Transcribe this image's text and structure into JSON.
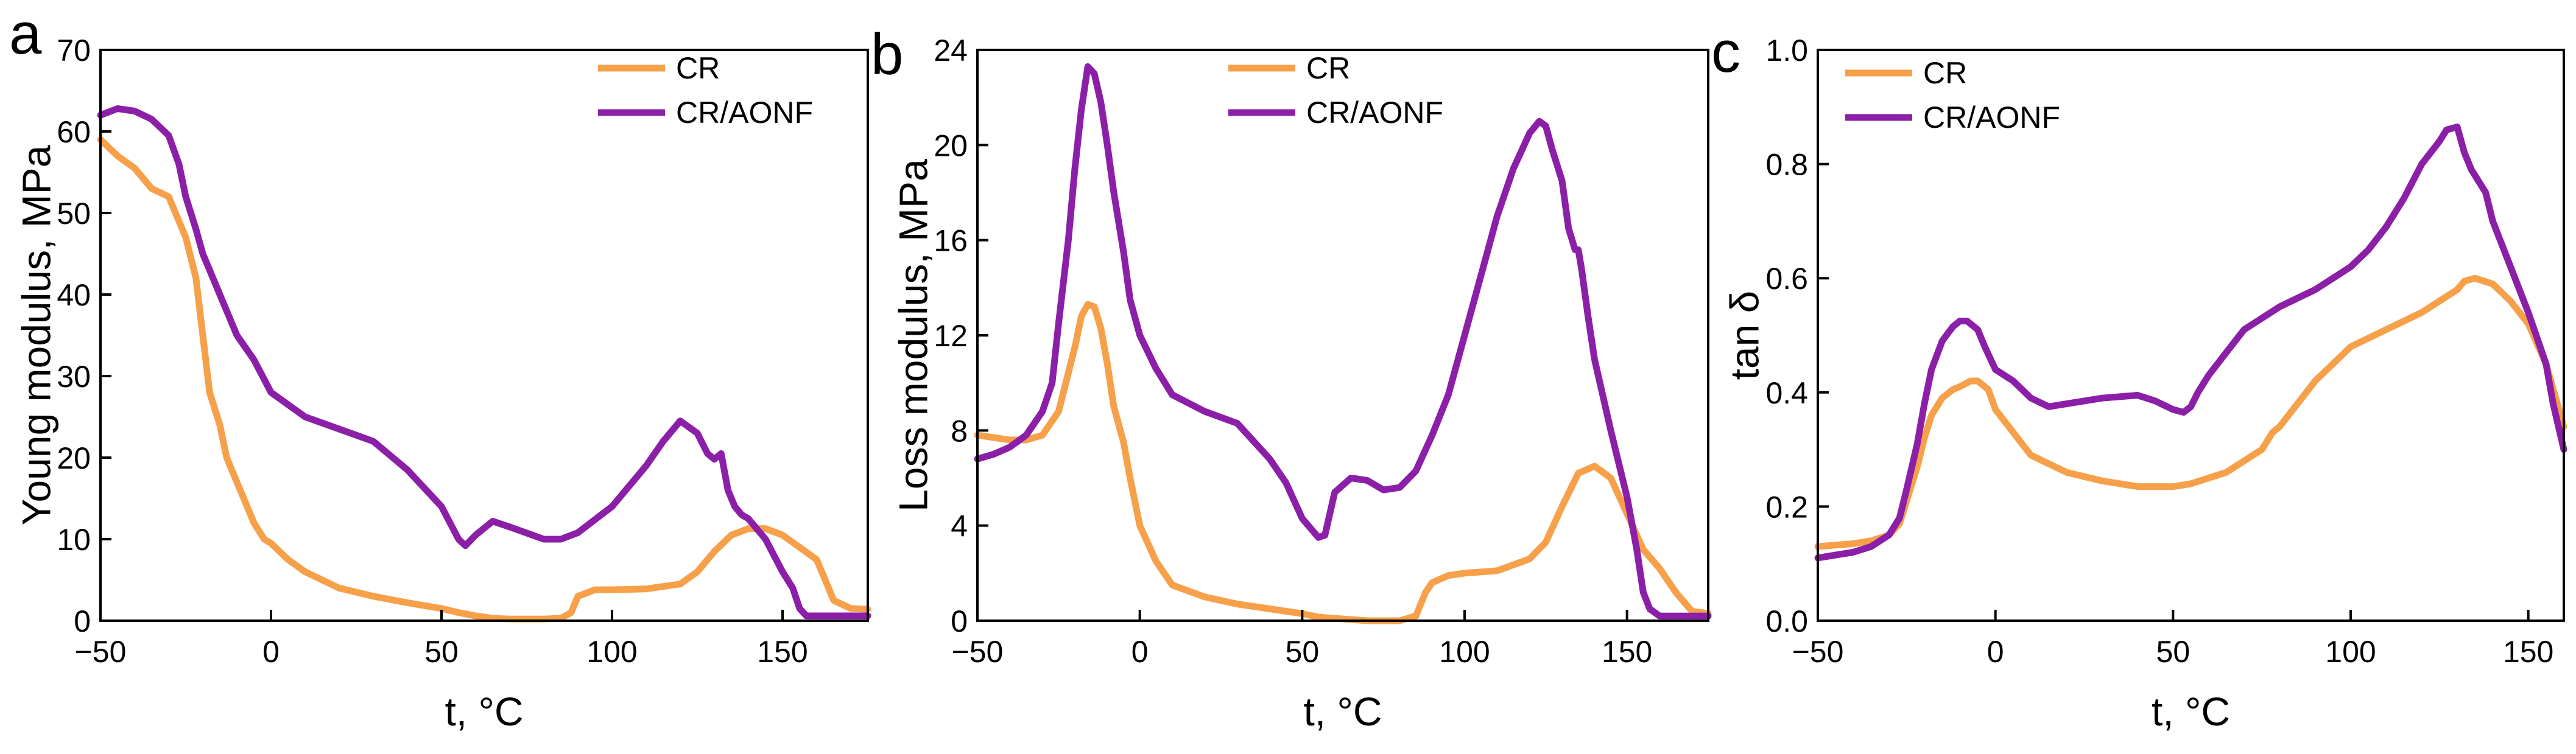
{
  "chart_data": [
    {
      "type": "line",
      "panel_label": "a",
      "title": "",
      "xlabel": "t, °C",
      "ylabel": "Young modulus, MPa",
      "xlim": [
        -50,
        175
      ],
      "ylim": [
        0,
        70
      ],
      "xticks": [
        -50,
        0,
        50,
        100,
        150
      ],
      "yticks": [
        0,
        10,
        20,
        30,
        40,
        50,
        60,
        70
      ],
      "tick_labels_x": [
        "−50",
        "0",
        "50",
        "100",
        "150"
      ],
      "tick_labels_y": [
        "0",
        "10",
        "20",
        "30",
        "40",
        "50",
        "60",
        "70"
      ],
      "legend_position": "top-right",
      "series": [
        {
          "name": "CR",
          "color": "#F7A04A",
          "x": [
            -50,
            -45,
            -40,
            -35,
            -30,
            -25,
            -22,
            -20,
            -18,
            -15,
            -13,
            -10,
            -7,
            -5,
            -2,
            0,
            5,
            10,
            20,
            30,
            40,
            50,
            55,
            60,
            65,
            70,
            80,
            85,
            88,
            90,
            95,
            100,
            110,
            120,
            125,
            130,
            135,
            140,
            145,
            150,
            155,
            160,
            165,
            170,
            175
          ],
          "y": [
            59,
            57,
            55.5,
            53,
            52,
            47,
            42,
            35,
            28,
            24,
            20,
            17,
            14,
            12,
            10,
            9.5,
            7.5,
            6,
            4,
            3,
            2.2,
            1.5,
            1,
            0.6,
            0.3,
            0.2,
            0.2,
            0.3,
            1,
            3,
            3.8,
            3.8,
            3.9,
            4.5,
            6,
            8.5,
            10.5,
            11.3,
            11.3,
            10.5,
            9,
            7.5,
            2.5,
            1.5,
            1.4
          ]
        },
        {
          "name": "CR/AONF",
          "color": "#8B1FA8",
          "x": [
            -50,
            -45,
            -40,
            -35,
            -30,
            -27,
            -25,
            -22,
            -20,
            -15,
            -10,
            -5,
            0,
            5,
            10,
            20,
            30,
            40,
            50,
            55,
            57,
            60,
            65,
            70,
            80,
            85,
            90,
            100,
            110,
            115,
            120,
            125,
            128,
            130,
            132,
            134,
            136,
            138,
            140,
            145,
            150,
            153,
            155,
            157,
            160,
            165,
            170,
            175
          ],
          "y": [
            62,
            62.8,
            62.5,
            61.5,
            59.5,
            56,
            52,
            48,
            45,
            40,
            35,
            32,
            28,
            26.5,
            25,
            23.5,
            22,
            18.5,
            14,
            10,
            9.2,
            10.5,
            12.2,
            11.5,
            10,
            10,
            10.8,
            14,
            19,
            22,
            24.5,
            23,
            20.5,
            19.8,
            20.5,
            16,
            14,
            13,
            12.5,
            10,
            6,
            4,
            1.5,
            0.6,
            0.6,
            0.6,
            0.6,
            0.6
          ]
        }
      ]
    },
    {
      "type": "line",
      "panel_label": "b",
      "title": "",
      "xlabel": "t, °C",
      "ylabel": "Loss modulus, MPa",
      "xlim": [
        -50,
        175
      ],
      "ylim": [
        0,
        24
      ],
      "xticks": [
        -50,
        0,
        50,
        100,
        150
      ],
      "yticks": [
        0,
        4,
        8,
        12,
        16,
        20,
        24
      ],
      "tick_labels_x": [
        "−50",
        "0",
        "50",
        "100",
        "150"
      ],
      "tick_labels_y": [
        "0",
        "4",
        "8",
        "12",
        "16",
        "20",
        "24"
      ],
      "legend_position": "top-right",
      "series": [
        {
          "name": "CR",
          "color": "#F7A04A",
          "x": [
            -50,
            -40,
            -35,
            -30,
            -25,
            -20,
            -18,
            -16,
            -14,
            -12,
            -10,
            -8,
            -5,
            -3,
            0,
            5,
            10,
            20,
            30,
            40,
            50,
            55,
            60,
            70,
            80,
            85,
            88,
            90,
            95,
            100,
            110,
            120,
            125,
            130,
            135,
            140,
            145,
            150,
            155,
            160,
            165,
            170,
            175
          ],
          "y": [
            7.8,
            7.6,
            7.6,
            7.8,
            8.8,
            11.5,
            12.8,
            13.3,
            13.2,
            12.3,
            10.8,
            9,
            7.5,
            6,
            4,
            2.5,
            1.5,
            1,
            0.7,
            0.5,
            0.3,
            0.15,
            0.1,
            0,
            0,
            0.2,
            1.2,
            1.6,
            1.9,
            2,
            2.1,
            2.6,
            3.3,
            4.8,
            6.2,
            6.5,
            6,
            4.5,
            3,
            2.2,
            1.2,
            0.4,
            0.3
          ]
        },
        {
          "name": "CR/AONF",
          "color": "#8B1FA8",
          "x": [
            -50,
            -45,
            -40,
            -35,
            -30,
            -27,
            -25,
            -22,
            -20,
            -18,
            -16,
            -14,
            -12,
            -10,
            -8,
            -5,
            -3,
            0,
            5,
            10,
            20,
            30,
            40,
            45,
            50,
            55,
            57,
            60,
            65,
            70,
            75,
            80,
            85,
            90,
            95,
            100,
            105,
            110,
            115,
            120,
            123,
            125,
            127,
            130,
            132,
            134,
            135,
            136,
            138,
            140,
            145,
            150,
            153,
            155,
            157,
            160,
            165,
            170,
            175
          ],
          "y": [
            6.8,
            7,
            7.3,
            7.8,
            8.8,
            10,
            12.5,
            16,
            19,
            21.5,
            23.3,
            23,
            21.8,
            20,
            18,
            15.5,
            13.5,
            12,
            10.6,
            9.5,
            8.8,
            8.3,
            6.8,
            5.8,
            4.3,
            3.5,
            3.6,
            5.4,
            6,
            5.9,
            5.5,
            5.6,
            6.3,
            7.8,
            9.5,
            12,
            14.5,
            17,
            19,
            20.5,
            21,
            20.8,
            19.8,
            18.5,
            16.5,
            15.6,
            15.6,
            14.8,
            12.8,
            11,
            8,
            5.2,
            3,
            1.2,
            0.5,
            0.2,
            0.2,
            0.2,
            0.2
          ]
        }
      ]
    },
    {
      "type": "line",
      "panel_label": "c",
      "title": "",
      "xlabel": "t, °C",
      "ylabel": "tan δ",
      "xlim": [
        -50,
        160
      ],
      "ylim": [
        0,
        1.0
      ],
      "xticks": [
        -50,
        0,
        50,
        100,
        150
      ],
      "yticks": [
        0.0,
        0.2,
        0.4,
        0.6,
        0.8,
        1.0
      ],
      "tick_labels_x": [
        "−50",
        "0",
        "50",
        "100",
        "150"
      ],
      "tick_labels_y": [
        "0.0",
        "0.2",
        "0.4",
        "0.6",
        "0.8",
        "1.0"
      ],
      "legend_position": "top-left",
      "series": [
        {
          "name": "CR",
          "color": "#F7A04A",
          "x": [
            -50,
            -40,
            -35,
            -30,
            -27,
            -25,
            -22,
            -20,
            -18,
            -15,
            -12,
            -10,
            -7,
            -5,
            -2,
            0,
            5,
            10,
            20,
            30,
            40,
            50,
            55,
            60,
            65,
            70,
            75,
            78,
            80,
            85,
            90,
            95,
            100,
            110,
            120,
            125,
            130,
            132,
            135,
            140,
            145,
            150,
            155,
            160
          ],
          "y": [
            0.13,
            0.135,
            0.14,
            0.15,
            0.17,
            0.21,
            0.27,
            0.32,
            0.36,
            0.39,
            0.405,
            0.41,
            0.42,
            0.42,
            0.405,
            0.37,
            0.33,
            0.29,
            0.26,
            0.245,
            0.235,
            0.235,
            0.24,
            0.25,
            0.26,
            0.28,
            0.3,
            0.33,
            0.34,
            0.38,
            0.42,
            0.45,
            0.48,
            0.51,
            0.54,
            0.56,
            0.58,
            0.595,
            0.6,
            0.59,
            0.56,
            0.52,
            0.45,
            0.34
          ]
        },
        {
          "name": "CR/AONF",
          "color": "#8B1FA8",
          "x": [
            -50,
            -45,
            -40,
            -35,
            -30,
            -27,
            -25,
            -22,
            -20,
            -18,
            -15,
            -12,
            -10,
            -8,
            -5,
            -3,
            0,
            5,
            10,
            15,
            20,
            30,
            40,
            45,
            50,
            53,
            55,
            57,
            60,
            65,
            70,
            75,
            80,
            85,
            90,
            95,
            100,
            105,
            110,
            115,
            120,
            125,
            127,
            130,
            132,
            134,
            136,
            138,
            140,
            145,
            150,
            155,
            157,
            160
          ],
          "y": [
            0.11,
            0.115,
            0.12,
            0.13,
            0.15,
            0.18,
            0.23,
            0.31,
            0.38,
            0.44,
            0.49,
            0.515,
            0.525,
            0.525,
            0.51,
            0.48,
            0.44,
            0.42,
            0.39,
            0.375,
            0.38,
            0.39,
            0.395,
            0.385,
            0.37,
            0.365,
            0.375,
            0.4,
            0.43,
            0.47,
            0.51,
            0.53,
            0.55,
            0.565,
            0.58,
            0.6,
            0.62,
            0.65,
            0.69,
            0.74,
            0.8,
            0.84,
            0.86,
            0.865,
            0.82,
            0.79,
            0.77,
            0.75,
            0.7,
            0.62,
            0.54,
            0.45,
            0.38,
            0.3
          ]
        }
      ]
    }
  ]
}
